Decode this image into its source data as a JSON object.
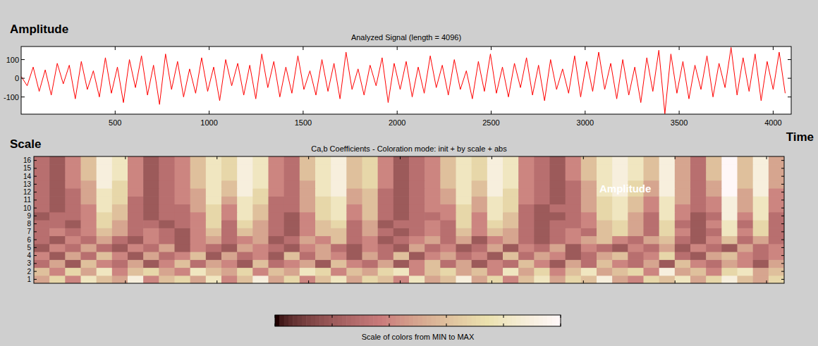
{
  "chart_data": [
    {
      "type": "line",
      "title": "Analyzed Signal (length = 4096)",
      "y_label": "Amplitude",
      "x_label": "Time",
      "color": "#ff0000",
      "xlim": [
        0,
        4096
      ],
      "xticks": [
        500,
        1000,
        1500,
        2000,
        2500,
        3000,
        3500,
        4000
      ],
      "ylim": [
        -192,
        170
      ],
      "yticks": [
        -100,
        0,
        100
      ],
      "x": [
        0,
        32,
        64,
        96,
        128,
        160,
        192,
        224,
        256,
        288,
        320,
        352,
        384,
        416,
        448,
        480,
        512,
        544,
        576,
        608,
        640,
        672,
        704,
        736,
        768,
        800,
        832,
        864,
        896,
        928,
        960,
        992,
        1024,
        1056,
        1088,
        1120,
        1152,
        1184,
        1216,
        1248,
        1280,
        1312,
        1344,
        1376,
        1408,
        1440,
        1472,
        1504,
        1536,
        1568,
        1600,
        1632,
        1664,
        1696,
        1728,
        1760,
        1792,
        1824,
        1856,
        1888,
        1920,
        1952,
        1984,
        2016,
        2048,
        2080,
        2112,
        2144,
        2176,
        2208,
        2240,
        2272,
        2304,
        2336,
        2368,
        2400,
        2432,
        2464,
        2496,
        2528,
        2560,
        2592,
        2624,
        2656,
        2688,
        2720,
        2752,
        2784,
        2816,
        2848,
        2880,
        2912,
        2944,
        2976,
        3008,
        3040,
        3072,
        3104,
        3136,
        3168,
        3200,
        3232,
        3264,
        3296,
        3328,
        3360,
        3392,
        3424,
        3456,
        3488,
        3520,
        3552,
        3584,
        3616,
        3648,
        3680,
        3712,
        3744,
        3776,
        3808,
        3840,
        3872,
        3904,
        3936,
        3968,
        4000,
        4032,
        4064
      ],
      "values": [
        10,
        -40,
        60,
        -70,
        45,
        -90,
        80,
        -30,
        70,
        -110,
        90,
        -60,
        40,
        -100,
        110,
        -80,
        60,
        -130,
        100,
        -50,
        120,
        -90,
        70,
        -140,
        130,
        -60,
        90,
        -100,
        50,
        -80,
        110,
        -70,
        60,
        -120,
        100,
        -40,
        80,
        -90,
        70,
        -110,
        130,
        -50,
        90,
        -100,
        60,
        -80,
        120,
        -60,
        40,
        -90,
        100,
        -70,
        80,
        -110,
        140,
        -60,
        50,
        -90,
        70,
        -40,
        110,
        -130,
        80,
        -60,
        90,
        -100,
        60,
        -80,
        120,
        -50,
        70,
        -90,
        100,
        -60,
        40,
        -110,
        90,
        -70,
        130,
        -80,
        60,
        -100,
        80,
        -50,
        110,
        -90,
        70,
        -120,
        100,
        -60,
        50,
        -80,
        120,
        -100,
        90,
        -70,
        140,
        -60,
        80,
        -110,
        100,
        -90,
        60,
        -130,
        110,
        -70,
        150,
        -190,
        130,
        -80,
        90,
        -110,
        70,
        -60,
        120,
        -100,
        80,
        -50,
        165,
        -90,
        110,
        -70,
        130,
        -120,
        90,
        -60,
        140,
        -80
      ]
    },
    {
      "type": "heatmap",
      "title": "Ca,b Coefficients - Coloration mode: init + by scale + abs",
      "y_label": "Scale",
      "annotation": "Amplitude",
      "xlim": [
        0,
        4096
      ],
      "xticks": [
        500,
        1000,
        1500,
        2000,
        2500,
        3000,
        3500,
        4000
      ],
      "ylim": [
        0.5,
        16.5
      ],
      "yticks": [
        1,
        2,
        3,
        4,
        5,
        6,
        7,
        8,
        9,
        10,
        11,
        12,
        13,
        14,
        15,
        16
      ],
      "tick_labels": "y",
      "color_range": [
        0,
        1
      ],
      "color_ticks": [
        0,
        0.2,
        0.4,
        0.6,
        0.8,
        1
      ],
      "colorbar_label": "Scale of colors from MIN to MAX",
      "cells": [
        [
          0.5,
          0.7,
          0.4,
          0.8,
          0.6,
          0.5,
          0.9,
          0.4,
          0.6,
          0.7,
          0.5,
          0.8,
          0.4,
          0.6,
          0.9,
          0.5,
          0.7,
          0.4,
          0.6,
          0.8,
          0.5,
          0.7,
          0.6,
          0.4,
          0.8,
          0.5,
          0.6,
          0.9,
          0.5,
          0.7,
          0.4,
          0.6,
          0.8,
          0.5,
          0.7,
          0.6,
          0.9,
          0.5,
          0.4,
          0.7,
          0.6,
          0.8,
          0.5,
          0.7,
          0.9,
          0.6,
          0.5,
          0.7
        ],
        [
          0.6,
          0.4,
          0.7,
          0.5,
          0.8,
          0.4,
          0.6,
          0.7,
          0.5,
          0.4,
          0.8,
          0.6,
          0.5,
          0.7,
          0.4,
          0.6,
          0.5,
          0.8,
          0.7,
          0.4,
          0.6,
          0.5,
          0.7,
          0.8,
          0.4,
          0.6,
          0.7,
          0.5,
          0.6,
          0.4,
          0.8,
          0.5,
          0.7,
          0.4,
          0.6,
          0.8,
          0.5,
          0.6,
          0.7,
          0.4,
          0.9,
          0.5,
          0.6,
          0.4,
          0.7,
          0.8,
          0.5,
          0.6
        ],
        [
          0.3,
          0.5,
          0.2,
          0.6,
          0.4,
          0.3,
          0.5,
          0.2,
          0.4,
          0.6,
          0.3,
          0.5,
          0.4,
          0.2,
          0.6,
          0.3,
          0.4,
          0.5,
          0.2,
          0.6,
          0.4,
          0.3,
          0.5,
          0.2,
          0.4,
          0.6,
          0.3,
          0.5,
          0.2,
          0.4,
          0.3,
          0.6,
          0.4,
          0.2,
          0.5,
          0.3,
          0.6,
          0.4,
          0.3,
          0.5,
          0.2,
          0.6,
          0.4,
          0.3,
          0.5,
          0.4,
          0.2,
          0.5
        ],
        [
          0.4,
          0.2,
          0.5,
          0.3,
          0.6,
          0.4,
          0.2,
          0.5,
          0.3,
          0.4,
          0.6,
          0.2,
          0.5,
          0.3,
          0.4,
          0.2,
          0.6,
          0.3,
          0.5,
          0.4,
          0.2,
          0.5,
          0.3,
          0.6,
          0.2,
          0.4,
          0.5,
          0.3,
          0.4,
          0.2,
          0.6,
          0.3,
          0.5,
          0.4,
          0.2,
          0.3,
          0.5,
          0.6,
          0.3,
          0.4,
          0.7,
          0.3,
          0.2,
          0.5,
          0.6,
          0.4,
          0.3,
          0.4
        ],
        [
          0.2,
          0.4,
          0.3,
          0.5,
          0.3,
          0.2,
          0.4,
          0.3,
          0.5,
          0.2,
          0.4,
          0.3,
          0.2,
          0.5,
          0.4,
          0.3,
          0.2,
          0.4,
          0.5,
          0.3,
          0.2,
          0.4,
          0.3,
          0.2,
          0.5,
          0.3,
          0.4,
          0.2,
          0.3,
          0.5,
          0.2,
          0.4,
          0.3,
          0.5,
          0.2,
          0.4,
          0.3,
          0.2,
          0.4,
          0.3,
          0.5,
          0.2,
          0.4,
          0.3,
          0.2,
          0.5,
          0.3,
          0.4
        ],
        [
          0.3,
          0.2,
          0.4,
          0.3,
          0.5,
          0.3,
          0.2,
          0.4,
          0.3,
          0.2,
          0.4,
          0.5,
          0.3,
          0.4,
          0.5,
          0.2,
          0.3,
          0.5,
          0.4,
          0.6,
          0.3,
          0.4,
          0.2,
          0.3,
          0.4,
          0.5,
          0.3,
          0.5,
          0.2,
          0.4,
          0.5,
          0.3,
          0.2,
          0.3,
          0.4,
          0.5,
          0.6,
          0.4,
          0.3,
          0.5,
          0.6,
          0.3,
          0.2,
          0.4,
          0.6,
          0.3,
          0.5,
          0.3
        ],
        [
          0.3,
          0.4,
          0.3,
          0.4,
          0.6,
          0.5,
          0.3,
          0.4,
          0.3,
          0.2,
          0.4,
          0.6,
          0.3,
          0.6,
          0.5,
          0.3,
          0.2,
          0.4,
          0.6,
          0.6,
          0.3,
          0.5,
          0.3,
          0.2,
          0.3,
          0.4,
          0.3,
          0.6,
          0.4,
          0.6,
          0.5,
          0.3,
          0.2,
          0.3,
          0.4,
          0.3,
          0.6,
          0.7,
          0.5,
          0.3,
          0.7,
          0.4,
          0.2,
          0.3,
          0.8,
          0.4,
          0.7,
          0.3
        ],
        [
          0.3,
          0.3,
          0.2,
          0.4,
          0.7,
          0.5,
          0.3,
          0.3,
          0.2,
          0.3,
          0.4,
          0.7,
          0.3,
          0.7,
          0.5,
          0.3,
          0.2,
          0.4,
          0.6,
          0.7,
          0.3,
          0.5,
          0.2,
          0.3,
          0.3,
          0.4,
          0.3,
          0.7,
          0.4,
          0.7,
          0.6,
          0.3,
          0.2,
          0.3,
          0.3,
          0.4,
          0.6,
          0.7,
          0.5,
          0.3,
          0.7,
          0.3,
          0.2,
          0.4,
          0.8,
          0.3,
          0.7,
          0.3
        ],
        [
          0.2,
          0.3,
          0.3,
          0.4,
          0.7,
          0.6,
          0.3,
          0.2,
          0.3,
          0.3,
          0.4,
          0.7,
          0.4,
          0.8,
          0.6,
          0.3,
          0.2,
          0.4,
          0.7,
          0.8,
          0.4,
          0.6,
          0.3,
          0.2,
          0.3,
          0.3,
          0.4,
          0.7,
          0.4,
          0.8,
          0.6,
          0.3,
          0.2,
          0.2,
          0.3,
          0.4,
          0.7,
          0.8,
          0.5,
          0.3,
          0.8,
          0.4,
          0.2,
          0.3,
          0.9,
          0.4,
          0.8,
          0.3
        ],
        [
          0.3,
          0.2,
          0.3,
          0.4,
          0.8,
          0.6,
          0.3,
          0.2,
          0.3,
          0.3,
          0.5,
          0.7,
          0.4,
          0.8,
          0.6,
          0.3,
          0.3,
          0.5,
          0.7,
          0.8,
          0.4,
          0.6,
          0.3,
          0.2,
          0.3,
          0.4,
          0.4,
          0.7,
          0.5,
          0.8,
          0.7,
          0.3,
          0.2,
          0.3,
          0.3,
          0.5,
          0.7,
          0.8,
          0.6,
          0.4,
          0.8,
          0.4,
          0.3,
          0.4,
          0.9,
          0.5,
          0.8,
          0.4
        ],
        [
          0.3,
          0.2,
          0.3,
          0.5,
          0.8,
          0.7,
          0.3,
          0.2,
          0.3,
          0.4,
          0.5,
          0.8,
          0.5,
          0.8,
          0.7,
          0.3,
          0.3,
          0.5,
          0.7,
          0.8,
          0.5,
          0.6,
          0.3,
          0.2,
          0.3,
          0.4,
          0.5,
          0.8,
          0.5,
          0.8,
          0.7,
          0.4,
          0.3,
          0.2,
          0.3,
          0.5,
          0.7,
          0.8,
          0.6,
          0.4,
          0.8,
          0.5,
          0.3,
          0.4,
          0.9,
          0.5,
          0.8,
          0.4
        ],
        [
          0.3,
          0.2,
          0.3,
          0.5,
          0.8,
          0.7,
          0.4,
          0.2,
          0.3,
          0.4,
          0.5,
          0.8,
          0.6,
          0.9,
          0.7,
          0.4,
          0.3,
          0.5,
          0.8,
          0.9,
          0.5,
          0.6,
          0.3,
          0.2,
          0.3,
          0.4,
          0.5,
          0.8,
          0.6,
          0.9,
          0.7,
          0.4,
          0.3,
          0.2,
          0.3,
          0.5,
          0.8,
          0.9,
          0.7,
          0.5,
          0.9,
          0.5,
          0.3,
          0.5,
          1,
          0.5,
          0.9,
          0.4
        ],
        [
          0.3,
          0.2,
          0.4,
          0.5,
          0.9,
          0.7,
          0.4,
          0.2,
          0.3,
          0.4,
          0.6,
          0.8,
          0.6,
          0.9,
          0.8,
          0.4,
          0.3,
          0.5,
          0.8,
          0.9,
          0.6,
          0.7,
          0.4,
          0.2,
          0.3,
          0.4,
          0.6,
          0.8,
          0.6,
          0.9,
          0.8,
          0.4,
          0.3,
          0.2,
          0.3,
          0.5,
          0.8,
          0.9,
          0.7,
          0.5,
          0.9,
          0.5,
          0.3,
          0.5,
          1,
          0.6,
          0.9,
          0.5
        ],
        [
          0.3,
          0.2,
          0.4,
          0.6,
          0.9,
          0.8,
          0.4,
          0.2,
          0.3,
          0.4,
          0.6,
          0.8,
          0.7,
          0.9,
          0.8,
          0.4,
          0.3,
          0.6,
          0.8,
          0.9,
          0.6,
          0.7,
          0.4,
          0.2,
          0.3,
          0.4,
          0.6,
          0.8,
          0.7,
          0.9,
          0.8,
          0.4,
          0.3,
          0.2,
          0.4,
          0.6,
          0.8,
          0.9,
          0.8,
          0.6,
          0.9,
          0.5,
          0.3,
          0.6,
          1,
          0.6,
          0.9,
          0.5
        ],
        [
          0.3,
          0.2,
          0.4,
          0.6,
          0.9,
          0.8,
          0.4,
          0.2,
          0.3,
          0.4,
          0.6,
          0.8,
          0.7,
          0.9,
          0.8,
          0.4,
          0.3,
          0.6,
          0.8,
          0.9,
          0.6,
          0.7,
          0.4,
          0.2,
          0.3,
          0.4,
          0.6,
          0.8,
          0.7,
          0.9,
          0.8,
          0.4,
          0.3,
          0.2,
          0.4,
          0.6,
          0.8,
          0.9,
          0.8,
          0.6,
          0.9,
          0.5,
          0.3,
          0.6,
          1,
          0.6,
          0.9,
          0.5
        ],
        [
          0.3,
          0.2,
          0.4,
          0.6,
          0.9,
          0.8,
          0.4,
          0.2,
          0.3,
          0.4,
          0.6,
          0.8,
          0.7,
          0.9,
          0.8,
          0.4,
          0.3,
          0.6,
          0.8,
          0.9,
          0.6,
          0.7,
          0.4,
          0.2,
          0.3,
          0.4,
          0.6,
          0.8,
          0.7,
          0.9,
          0.8,
          0.4,
          0.3,
          0.2,
          0.4,
          0.6,
          0.8,
          0.9,
          0.8,
          0.6,
          0.9,
          0.5,
          0.3,
          0.6,
          1,
          0.6,
          0.9,
          0.5
        ]
      ]
    }
  ]
}
